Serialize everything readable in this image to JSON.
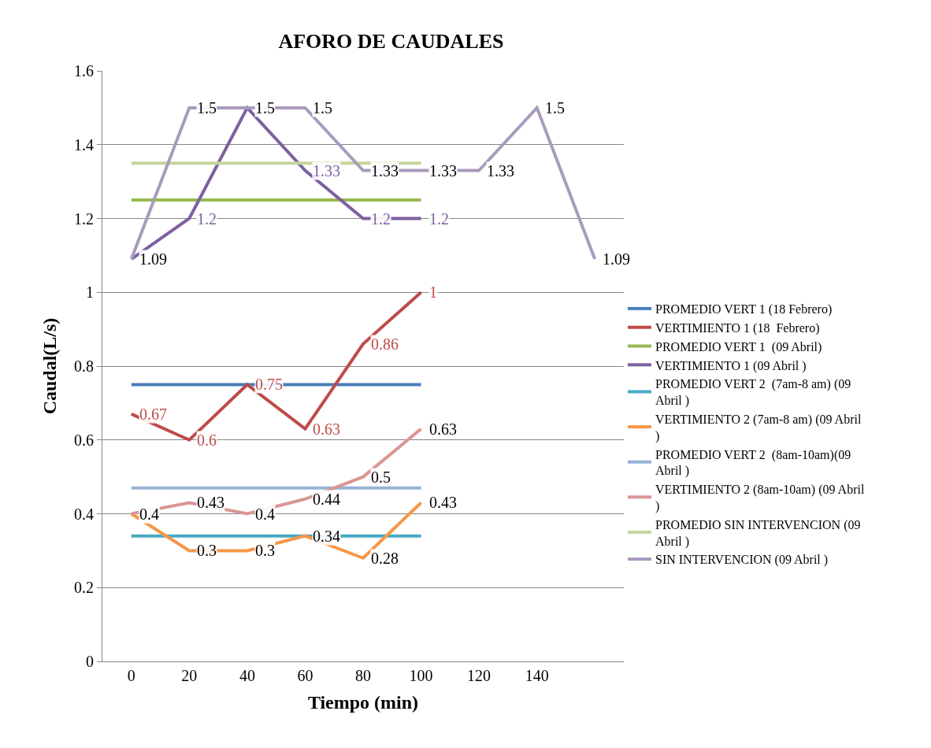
{
  "chart_data": {
    "type": "line",
    "title": "AFORO DE CAUDALES",
    "xlabel": "Tiempo (min)",
    "ylabel": "Caudal(L/s)",
    "categories": [
      "0",
      "20",
      "40",
      "60",
      "80",
      "100",
      "120",
      "140",
      null
    ],
    "ylim": [
      0,
      1.6
    ],
    "yticks": [
      0,
      0.2,
      0.4,
      0.6,
      0.8,
      1,
      1.2,
      1.4,
      1.6
    ],
    "grid": "y",
    "legend": "right",
    "marker": "none",
    "line_style": "solid",
    "series": [
      {
        "name": "PROMEDIO VERT 1 (18 Febrero)",
        "color": "#4a7ebb",
        "values": [
          0.75,
          0.75,
          0.75,
          0.75,
          0.75,
          0.75,
          null,
          null,
          null
        ]
      },
      {
        "name": "VERTIMIENTO 1 (18  Febrero)",
        "color": "#be4b48",
        "values": [
          0.67,
          0.6,
          0.75,
          0.63,
          0.86,
          1,
          null,
          null,
          null
        ],
        "value_labels": [
          "0.67",
          "0.6",
          "0.75",
          "0.63",
          "0.86",
          "1",
          null,
          null,
          null
        ]
      },
      {
        "name": "PROMEDIO VERT 1  (09 Abril)",
        "color": "#98b954",
        "values": [
          1.25,
          1.25,
          1.25,
          1.25,
          1.25,
          1.25,
          null,
          null,
          null
        ]
      },
      {
        "name": "VERTIMIENTO 1 (09 Abril )",
        "color": "#7d60a0",
        "values": [
          1.09,
          1.2,
          1.5,
          1.33,
          1.2,
          1.2,
          null,
          null,
          null
        ],
        "value_labels": [
          null,
          "1.2",
          null,
          "1.33",
          "1.2",
          "1.2",
          null,
          null,
          null
        ]
      },
      {
        "name": "PROMEDIO VERT 2  (7am-8 am) (09 Abril )",
        "color": "#46aac5",
        "values": [
          0.34,
          0.34,
          0.34,
          0.34,
          0.34,
          0.34,
          null,
          null,
          null
        ]
      },
      {
        "name": "VERTIMIENTO 2 (7am-8 am) (09 Abril )",
        "color": "#f79646",
        "values": [
          0.4,
          0.3,
          0.3,
          0.34,
          0.28,
          0.43,
          null,
          null,
          null
        ],
        "value_labels": [
          "0.4",
          "0.3",
          "0.3",
          "0.34",
          "0.28",
          "0.43",
          null,
          null,
          null
        ]
      },
      {
        "name": "PROMEDIO VERT 2  (8am-10am)(09 Abril )",
        "color": "#95b3d7",
        "values": [
          0.47,
          0.47,
          0.47,
          0.47,
          0.47,
          0.47,
          null,
          null,
          null
        ]
      },
      {
        "name": "VERTIMIENTO 2 (8am-10am) (09 Abril )",
        "color": "#d99694",
        "values": [
          0.4,
          0.43,
          0.4,
          0.44,
          0.5,
          0.63,
          null,
          null,
          null
        ],
        "value_labels": [
          "0.4",
          "0.43",
          "0.4",
          "0.44",
          "0.5",
          "0.63",
          null,
          null,
          null
        ]
      },
      {
        "name": "PROMEDIO SIN INTERVENCION (09 Abril )",
        "color": "#c3d69b",
        "values": [
          1.35,
          1.35,
          1.35,
          1.35,
          1.35,
          1.35,
          null,
          null,
          null
        ]
      },
      {
        "name": "SIN INTERVENCION (09 Abril )",
        "color": "#a99bbd",
        "values": [
          1.09,
          1.5,
          1.5,
          1.5,
          1.33,
          1.33,
          1.33,
          1.5,
          1.09
        ],
        "value_labels": [
          "1.09",
          "1.5",
          "1.5",
          "1.5",
          "1.33",
          "1.33",
          "1.33",
          "1.5",
          "1.09"
        ]
      }
    ]
  }
}
